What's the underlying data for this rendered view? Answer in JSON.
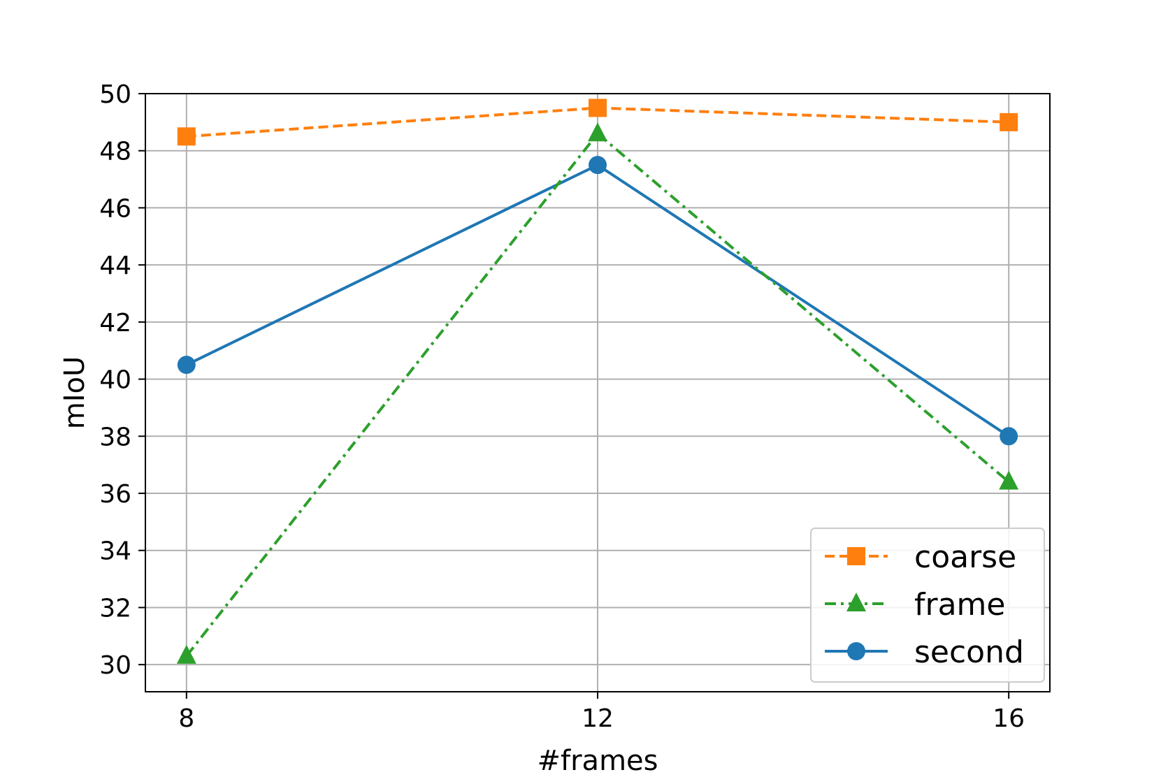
{
  "chart_data": {
    "type": "line",
    "title": "",
    "xlabel": "#frames",
    "ylabel": "mIoU",
    "x": [
      8,
      12,
      16
    ],
    "xticks": [
      "8",
      "12",
      "16"
    ],
    "yticks": [
      "30",
      "32",
      "34",
      "36",
      "38",
      "40",
      "42",
      "44",
      "46",
      "48",
      "50"
    ],
    "xlim": [
      7.6,
      16.4
    ],
    "ylim": [
      29.05,
      50
    ],
    "grid": true,
    "legend_position": "lower-right",
    "series": [
      {
        "name": "coarse",
        "values": [
          48.5,
          49.5,
          49.0
        ],
        "color": "#ff7f0e",
        "line_style": "dashed",
        "marker": "square"
      },
      {
        "name": "frame",
        "values": [
          30.3,
          48.6,
          36.4
        ],
        "color": "#2ca02c",
        "line_style": "dash-dot",
        "marker": "triangle"
      },
      {
        "name": "second",
        "values": [
          40.5,
          47.5,
          38.0
        ],
        "color": "#1f77b4",
        "line_style": "solid",
        "marker": "circle"
      }
    ]
  }
}
